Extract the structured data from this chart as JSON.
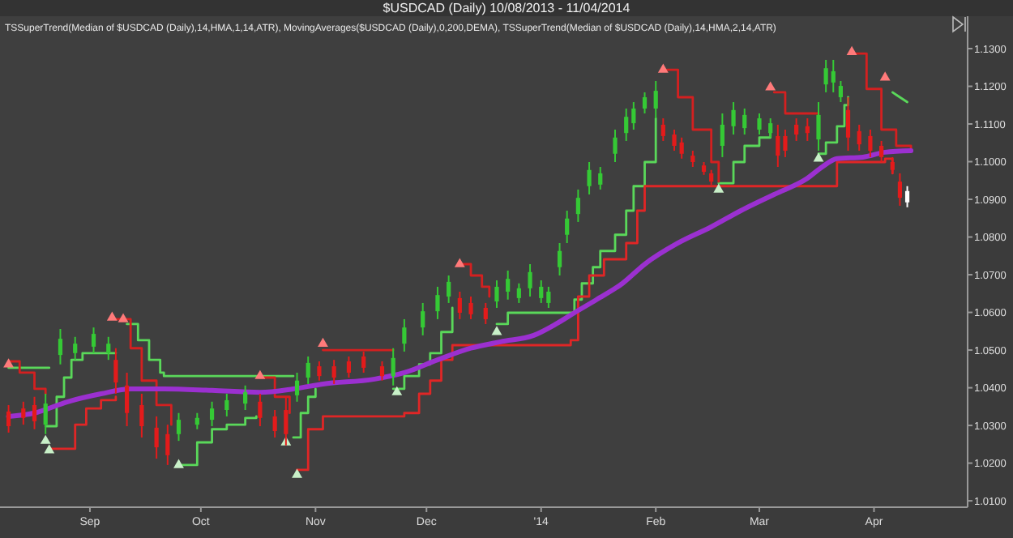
{
  "chart_data": {
    "type": "candlestick",
    "title": "$USDCAD (Daily)  10/08/2013 - 11/04/2014",
    "subtitle": "TSSuperTrend(Median of $USDCAD (Daily),14,HMA,1,14,ATR), MovingAverages($USDCAD (Daily),0,200,DEMA), TSSuperTrend(Median of $USDCAD (Daily),14,HMA,2,14,ATR)",
    "x": [
      "2013-08-10",
      "2013-08-14",
      "2013-08-17",
      "2013-08-20",
      "2013-08-24",
      "2013-08-28",
      "2013-09-02",
      "2013-09-06",
      "2013-09-08",
      "2013-09-11",
      "2013-09-15",
      "2013-09-19",
      "2013-09-22",
      "2013-09-25",
      "2013-09-30",
      "2013-10-04",
      "2013-10-08",
      "2013-10-13",
      "2013-10-17",
      "2013-10-21",
      "2013-10-24",
      "2013-10-27",
      "2013-10-30",
      "2013-11-02",
      "2013-11-06",
      "2013-11-10",
      "2013-11-14",
      "2013-11-19",
      "2013-11-22",
      "2013-11-25",
      "2013-11-30",
      "2013-12-04",
      "2013-12-07",
      "2013-12-10",
      "2013-12-13",
      "2013-12-17",
      "2013-12-20",
      "2013-12-23",
      "2013-12-26",
      "2013-12-29",
      "2014-01-01",
      "2014-01-03",
      "2014-01-06",
      "2014-01-08",
      "2014-01-11",
      "2014-01-14",
      "2014-01-17",
      "2014-01-21",
      "2014-01-24",
      "2014-01-26",
      "2014-01-29",
      "2014-02-01",
      "2014-02-03",
      "2014-02-06",
      "2014-02-08",
      "2014-02-11",
      "2014-02-14",
      "2014-02-16",
      "2014-02-19",
      "2014-02-22",
      "2014-02-25",
      "2014-03-01",
      "2014-03-04",
      "2014-03-06",
      "2014-03-08",
      "2014-03-11",
      "2014-03-14",
      "2014-03-17",
      "2014-03-19",
      "2014-03-21",
      "2014-03-23",
      "2014-03-25",
      "2014-03-28",
      "2014-03-31",
      "2014-04-03",
      "2014-04-06",
      "2014-04-08",
      "2014-04-10"
    ],
    "ohlc": [
      [
        1.0337,
        1.0354,
        1.0281,
        1.0298
      ],
      [
        1.0345,
        1.0363,
        1.0302,
        1.032
      ],
      [
        1.0354,
        1.0376,
        1.029,
        1.0311
      ],
      [
        1.0302,
        1.0384,
        1.0277,
        1.0358
      ],
      [
        1.0487,
        1.0556,
        1.0462,
        1.053
      ],
      [
        1.0492,
        1.0535,
        1.0474,
        1.0517
      ],
      [
        1.0509,
        1.056,
        1.0492,
        1.0543
      ],
      [
        1.0492,
        1.0535,
        1.0474,
        1.0517
      ],
      [
        1.0474,
        1.0505,
        1.0384,
        1.0414
      ],
      [
        1.0406,
        1.044,
        1.0298,
        1.0333
      ],
      [
        1.0354,
        1.0384,
        1.0268,
        1.0298
      ],
      [
        1.0294,
        1.0324,
        1.0212,
        1.0242
      ],
      [
        1.0277,
        1.0302,
        1.0195,
        1.0221
      ],
      [
        1.0277,
        1.0333,
        1.0259,
        1.0315
      ],
      [
        1.0302,
        1.0333,
        1.029,
        1.032
      ],
      [
        1.0315,
        1.0363,
        1.0298,
        1.0345
      ],
      [
        1.0341,
        1.0384,
        1.0324,
        1.0367
      ],
      [
        1.0358,
        1.0406,
        1.0341,
        1.0388
      ],
      [
        1.0363,
        1.0384,
        1.0298,
        1.032
      ],
      [
        1.0324,
        1.0341,
        1.0268,
        1.0285
      ],
      [
        1.0341,
        1.0376,
        1.0247,
        1.0277
      ],
      [
        1.038,
        1.044,
        1.0363,
        1.0419
      ],
      [
        1.0427,
        1.0483,
        1.041,
        1.0466
      ],
      [
        1.0457,
        1.047,
        1.0419,
        1.0431
      ],
      [
        1.0457,
        1.0474,
        1.041,
        1.0427
      ],
      [
        1.047,
        1.0483,
        1.0427,
        1.044
      ],
      [
        1.0483,
        1.0496,
        1.044,
        1.0453
      ],
      [
        1.0457,
        1.047,
        1.0419,
        1.0431
      ],
      [
        1.0431,
        1.0505,
        1.0406,
        1.0479
      ],
      [
        1.0517,
        1.0582,
        1.0496,
        1.056
      ],
      [
        1.056,
        1.0625,
        1.0539,
        1.0603
      ],
      [
        1.0603,
        1.0668,
        1.0582,
        1.0646
      ],
      [
        1.0642,
        1.0698,
        1.0625,
        1.0681
      ],
      [
        1.0638,
        1.0655,
        1.0582,
        1.0599
      ],
      [
        1.0625,
        1.0642,
        1.0582,
        1.0595
      ],
      [
        1.0612,
        1.0625,
        1.0569,
        1.0582
      ],
      [
        1.0629,
        1.0685,
        1.0612,
        1.0668
      ],
      [
        1.0655,
        1.0711,
        1.0634,
        1.0689
      ],
      [
        1.0638,
        1.0677,
        1.0625,
        1.0664
      ],
      [
        1.0664,
        1.0728,
        1.0642,
        1.0707
      ],
      [
        1.0638,
        1.0685,
        1.0625,
        1.0668
      ],
      [
        1.0625,
        1.0668,
        1.0612,
        1.0655
      ],
      [
        1.072,
        1.0784,
        1.0698,
        1.0763
      ],
      [
        1.0806,
        1.087,
        1.0784,
        1.0849
      ],
      [
        1.0861,
        1.0926,
        1.084,
        1.0904
      ],
      [
        1.0935,
        1.0999,
        1.0913,
        1.0978
      ],
      [
        1.0939,
        1.0986,
        1.0926,
        1.0969
      ],
      [
        1.1021,
        1.1085,
        1.0999,
        1.1064
      ],
      [
        1.1076,
        1.1141,
        1.1055,
        1.1119
      ],
      [
        1.1102,
        1.1158,
        1.1085,
        1.1141
      ],
      [
        1.1141,
        1.1184,
        1.1128,
        1.1171
      ],
      [
        1.1141,
        1.1214,
        1.1115,
        1.1188
      ],
      [
        1.1098,
        1.1115,
        1.1055,
        1.1068
      ],
      [
        1.1072,
        1.1085,
        1.1029,
        1.1042
      ],
      [
        1.1051,
        1.1064,
        1.1008,
        1.1021
      ],
      [
        1.1016,
        1.1029,
        1.0986,
        1.0999
      ],
      [
        1.099,
        1.0999,
        1.0965,
        1.0973
      ],
      [
        1.0969,
        1.0978,
        1.0939,
        1.0947
      ],
      [
        1.1042,
        1.1128,
        1.1012,
        1.1098
      ],
      [
        1.1094,
        1.1158,
        1.1072,
        1.1137
      ],
      [
        1.1089,
        1.1141,
        1.1072,
        1.1124
      ],
      [
        1.1085,
        1.1128,
        1.1072,
        1.1115
      ],
      [
        1.1076,
        1.1115,
        1.1064,
        1.1102
      ],
      [
        1.1068,
        1.1098,
        1.0986,
        1.1016
      ],
      [
        1.1068,
        1.1085,
        1.1012,
        1.1029
      ],
      [
        1.1098,
        1.1115,
        1.1055,
        1.1072
      ],
      [
        1.1094,
        1.1115,
        1.1055,
        1.1076
      ],
      [
        1.1059,
        1.1158,
        1.1029,
        1.1124
      ],
      [
        1.1205,
        1.127,
        1.1184,
        1.1248
      ],
      [
        1.121,
        1.127,
        1.1184,
        1.124
      ],
      [
        1.1171,
        1.1214,
        1.1158,
        1.1201
      ],
      [
        1.1137,
        1.1171,
        1.1029,
        1.1064
      ],
      [
        1.1081,
        1.1098,
        1.1029,
        1.1046
      ],
      [
        1.1068,
        1.1085,
        1.1012,
        1.1029
      ],
      [
        1.1042,
        1.1055,
        1.0999,
        1.1012
      ],
      [
        1.0999,
        1.1012,
        1.0969,
        1.0978
      ],
      [
        1.0947,
        1.0969,
        1.0883,
        1.0904
      ],
      [
        1.0892,
        1.0935,
        1.0879,
        1.0922
      ]
    ],
    "colors": [
      "#e31b1b",
      "#e31b1b",
      "#e31b1b",
      "#35c935",
      "#35c935",
      "#35c935",
      "#35c935",
      "#35c935",
      "#e31b1b",
      "#e31b1b",
      "#e31b1b",
      "#e31b1b",
      "#e31b1b",
      "#35c935",
      "#35c935",
      "#35c935",
      "#35c935",
      "#35c935",
      "#e31b1b",
      "#e31b1b",
      "#e31b1b",
      "#35c935",
      "#35c935",
      "#e31b1b",
      "#e31b1b",
      "#e31b1b",
      "#e31b1b",
      "#e31b1b",
      "#35c935",
      "#35c935",
      "#35c935",
      "#35c935",
      "#35c935",
      "#e31b1b",
      "#e31b1b",
      "#e31b1b",
      "#35c935",
      "#35c935",
      "#35c935",
      "#35c935",
      "#35c935",
      "#35c935",
      "#35c935",
      "#35c935",
      "#35c935",
      "#35c935",
      "#35c935",
      "#35c935",
      "#35c935",
      "#35c935",
      "#35c935",
      "#35c935",
      "#e31b1b",
      "#e31b1b",
      "#e31b1b",
      "#e31b1b",
      "#e31b1b",
      "#e31b1b",
      "#35c935",
      "#35c935",
      "#35c935",
      "#35c935",
      "#35c935",
      "#e31b1b",
      "#e31b1b",
      "#e31b1b",
      "#e31b1b",
      "#35c935",
      "#35c935",
      "#35c935",
      "#35c935",
      "#e31b1b",
      "#e31b1b",
      "#e31b1b",
      "#e31b1b",
      "#e31b1b",
      "#e31b1b",
      "#ffffff"
    ],
    "series": [
      {
        "type": "step",
        "color": "#5ad85a",
        "x": [
          "2013-08-10",
          "2013-08-21",
          null,
          "2013-08-20",
          "2013-08-23",
          "2013-08-25",
          "2013-08-27",
          "2013-08-30",
          "2013-09-08",
          null,
          "2013-09-11",
          "2013-09-14",
          "2013-09-17",
          "2013-09-20",
          "2013-09-21",
          "2013-10-26",
          null,
          "2013-09-25",
          "2013-09-30",
          "2013-10-04",
          "2013-10-08",
          "2013-10-13",
          "2013-10-16",
          null,
          "2013-10-26",
          "2013-10-28",
          "2013-10-30",
          "2013-11-01",
          null,
          "2013-11-22",
          "2013-11-25",
          "2013-11-29",
          "2013-12-02",
          "2013-12-05",
          "2013-12-08",
          null,
          "2013-12-20",
          "2013-12-23",
          "2014-01-08",
          "2014-01-10",
          "2014-01-12",
          "2014-01-15",
          "2014-01-17",
          "2014-01-21",
          "2014-01-24",
          "2014-01-26",
          "2014-01-29",
          "2014-02-01",
          null,
          "2014-02-18",
          "2014-02-22",
          "2014-02-25",
          "2014-03-01",
          "2014-03-04",
          null,
          "2014-03-17",
          "2014-03-19",
          "2014-03-22",
          "2014-03-24",
          "2014-03-25"
        ],
        "values": [
          1.0453,
          1.0453,
          null,
          1.0298,
          1.0376,
          1.0427,
          1.0474,
          1.0492,
          1.0492,
          null,
          1.0569,
          1.0526,
          1.0474,
          1.044,
          1.0431,
          1.0431,
          null,
          1.0195,
          1.0255,
          1.029,
          1.0302,
          1.032,
          1.0324,
          null,
          1.0268,
          1.0333,
          1.0376,
          1.0397,
          null,
          1.0397,
          1.0431,
          1.0462,
          1.0492,
          1.0548,
          1.0612,
          null,
          1.0569,
          1.0599,
          1.0599,
          1.0634,
          1.0677,
          1.072,
          1.0763,
          1.0806,
          1.087,
          1.0935,
          1.0999,
          1.1115,
          null,
          1.0943,
          1.0999,
          1.1042,
          1.1064,
          1.1085,
          null,
          1.1021,
          1.1051,
          1.1094,
          1.115,
          1.1171
        ]
      },
      {
        "type": "line",
        "color": "#5ad85a",
        "x": [
          "2014-04-06",
          "2014-04-08",
          "2014-04-10"
        ],
        "values": [
          1.1184,
          1.1171,
          1.1158
        ]
      },
      {
        "type": "step",
        "color": "#d42020",
        "x": [
          "2013-08-10",
          "2013-08-13",
          "2013-08-17",
          "2013-08-20",
          null,
          "2013-09-08",
          "2013-09-12",
          "2013-09-15",
          "2013-09-19",
          "2013-09-23",
          null,
          "2013-10-17",
          "2013-10-21",
          "2013-10-25",
          null,
          "2013-11-03",
          "2013-11-22",
          null,
          "2013-12-10",
          "2013-12-13",
          "2013-12-16",
          "2013-12-18",
          null,
          "2014-02-04",
          "2014-02-07",
          "2014-02-11",
          "2014-02-16",
          "2014-02-18",
          null,
          "2014-03-05",
          "2014-03-08",
          "2014-03-17",
          null,
          "2014-03-26",
          "2014-03-30",
          "2014-04-03",
          "2014-04-07",
          "2014-04-11"
        ],
        "values": [
          1.047,
          1.044,
          1.0397,
          1.0384,
          null,
          1.0582,
          1.0505,
          1.0419,
          1.0354,
          1.0302,
          null,
          1.0427,
          1.0376,
          1.0333,
          null,
          1.05,
          1.05,
          null,
          1.0728,
          1.0698,
          1.0668,
          1.0642,
          null,
          1.1244,
          1.1171,
          1.1085,
          1.0999,
          1.0947,
          null,
          1.1184,
          1.1128,
          1.1128,
          null,
          1.1287,
          1.1193,
          1.1085,
          1.1042,
          1.1029
        ]
      },
      {
        "type": "step",
        "color": "#e02626",
        "x": [
          "2013-08-21",
          "2013-08-26",
          "2013-08-28",
          "2013-08-31",
          "2013-09-04",
          "2013-09-08",
          null,
          "2013-10-27",
          "2013-10-30",
          "2013-11-03",
          "2013-11-25",
          "2013-11-29",
          "2013-12-02",
          "2013-12-05",
          "2013-12-08",
          "2014-01-09",
          "2014-01-11",
          "2014-01-14",
          "2014-01-18",
          "2014-01-24",
          "2014-01-27",
          "2014-01-29",
          "2014-03-21",
          "2014-03-22",
          "2014-04-04",
          "2014-04-06"
        ],
        "values": [
          1.0238,
          1.0238,
          1.0302,
          1.0345,
          1.0367,
          1.0376,
          null,
          1.0182,
          1.029,
          1.0324,
          1.0333,
          1.0384,
          1.0419,
          1.0474,
          1.0513,
          1.0526,
          1.0642,
          1.0698,
          1.0741,
          1.0784,
          1.087,
          1.0935,
          1.0935,
          1.0999,
          1.1008,
          1.0969
        ]
      },
      {
        "type": "line",
        "color": "#9b30d0",
        "x": [
          "2013-08-10",
          "2013-08-17",
          "2013-08-26",
          "2013-09-04",
          "2013-09-12",
          "2013-09-21",
          "2013-10-04",
          "2013-10-17",
          "2013-10-26",
          "2013-11-03",
          "2013-11-17",
          "2013-11-25",
          "2013-12-04",
          "2013-12-13",
          "2013-12-21",
          "2013-12-30",
          "2014-01-05",
          "2014-01-10",
          "2014-01-16",
          "2014-01-23",
          "2014-01-29",
          "2014-02-07",
          "2014-02-16",
          "2014-02-24",
          "2014-03-05",
          "2014-03-14",
          "2014-03-18",
          "2014-03-22",
          "2014-03-29",
          "2014-04-04",
          "2014-04-11"
        ],
        "values": [
          1.0324,
          1.0333,
          1.0363,
          1.0384,
          1.0397,
          1.0397,
          1.0393,
          1.0388,
          1.0397,
          1.041,
          1.0423,
          1.044,
          1.0474,
          1.0505,
          1.0522,
          1.0539,
          1.0569,
          1.0599,
          1.0634,
          1.0677,
          1.0728,
          1.0784,
          1.0827,
          1.087,
          1.0913,
          1.0956,
          1.0986,
          1.1008,
          1.1012,
          1.1025,
          1.1029
        ]
      },
      {
        "type": "scatter",
        "marker": "triangle",
        "color": "#c8f0c8",
        "x": [
          "2013-08-20",
          "2013-08-21",
          "2013-09-25",
          "2013-10-24",
          "2013-10-27",
          "2013-11-23",
          "2013-12-20",
          "2014-02-18",
          "2014-03-17"
        ],
        "values": [
          1.0259,
          1.0234,
          1.0195,
          1.0255,
          1.0169,
          1.0388,
          1.0548,
          1.0926,
          1.1008
        ]
      },
      {
        "type": "scatter",
        "marker": "triangle",
        "color": "#ff7a7a",
        "x": [
          "2013-08-10",
          "2013-09-07",
          "2013-09-10",
          "2013-10-17",
          "2013-11-03",
          "2013-12-10",
          "2014-02-03",
          "2014-03-04",
          "2014-03-26",
          "2014-04-04"
        ],
        "values": [
          1.0462,
          1.0586,
          1.0582,
          1.0431,
          1.0517,
          1.0728,
          1.1244,
          1.1197,
          1.1291,
          1.1223
        ]
      }
    ],
    "xlim": [
      "2013-08-09",
      "2014-04-25"
    ],
    "xticks": [
      {
        "value": "2013-09-01",
        "label": "Sep"
      },
      {
        "value": "2013-10-01",
        "label": "Oct"
      },
      {
        "value": "2013-11-01",
        "label": "Nov"
      },
      {
        "value": "2013-12-01",
        "label": "Dec"
      },
      {
        "value": "2014-01-01",
        "label": "'14"
      },
      {
        "value": "2014-02-01",
        "label": "Feb"
      },
      {
        "value": "2014-03-01",
        "label": "Mar"
      },
      {
        "value": "2014-04-01",
        "label": "Apr"
      }
    ],
    "ylim": [
      1.0083,
      1.1386
    ],
    "yticks": [
      {
        "value": 1.01,
        "label": "1.0100"
      },
      {
        "value": 1.02,
        "label": "1.0200"
      },
      {
        "value": 1.03,
        "label": "1.0300"
      },
      {
        "value": 1.04,
        "label": "1.0400"
      },
      {
        "value": 1.05,
        "label": "1.0500"
      },
      {
        "value": 1.06,
        "label": "1.0600"
      },
      {
        "value": 1.07,
        "label": "1.0700"
      },
      {
        "value": 1.08,
        "label": "1.0800"
      },
      {
        "value": 1.09,
        "label": "1.0900"
      },
      {
        "value": 1.1,
        "label": "1.1000"
      },
      {
        "value": 1.11,
        "label": "1.1100"
      },
      {
        "value": 1.12,
        "label": "1.1200"
      },
      {
        "value": 1.13,
        "label": "1.1300"
      }
    ]
  }
}
